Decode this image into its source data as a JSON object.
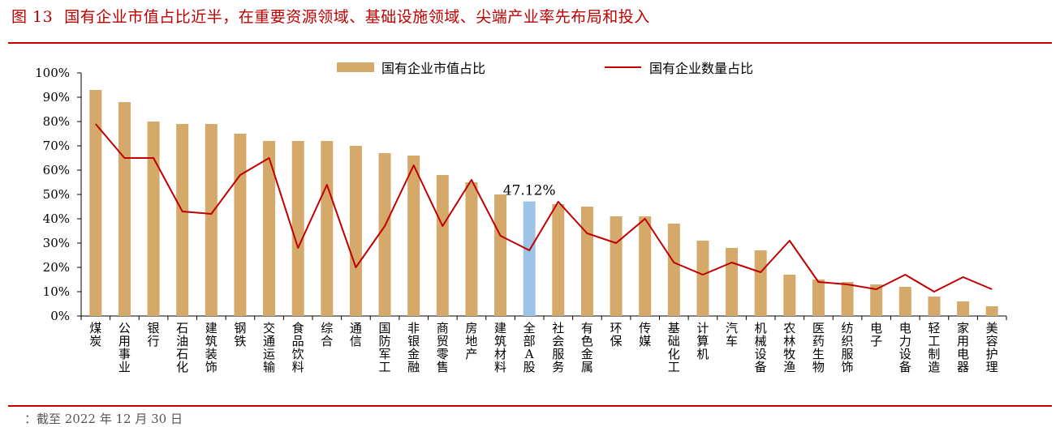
{
  "header": {
    "figure_number": "图 13",
    "title": "国有企业市值占比近半，在重要资源领域、基础设施领域、尖端产业率先布局和投入"
  },
  "footer": {
    "note": "：截至 2022 年 12 月 30 日"
  },
  "colors": {
    "accent": "#c00000",
    "bar": "#d4a96a",
    "highlight_bar": "#9dc3e6",
    "line": "#c00000"
  },
  "chart_data": {
    "type": "bar",
    "categories": [
      "煤炭",
      "公用事业",
      "银行",
      "石油石化",
      "建筑装饰",
      "钢铁",
      "交通运输",
      "食品饮料",
      "综合",
      "通信",
      "国防军工",
      "非银金融",
      "商贸零售",
      "房地产",
      "建筑材料",
      "全部A股",
      "社会服务",
      "有色金属",
      "环保",
      "传媒",
      "基础化工",
      "计算机",
      "汽车",
      "机械设备",
      "农林牧渔",
      "医药生物",
      "纺织服饰",
      "电子",
      "电力设备",
      "轻工制造",
      "家用电器",
      "美容护理"
    ],
    "series": [
      {
        "name": "国有企业市值占比",
        "kind": "bar",
        "values": [
          93,
          88,
          80,
          79,
          79,
          75,
          72,
          72,
          72,
          70,
          67,
          66,
          58,
          55,
          50,
          47.12,
          46,
          45,
          41,
          41,
          38,
          31,
          28,
          27,
          17,
          15,
          14,
          13,
          12,
          8,
          6,
          4
        ]
      },
      {
        "name": "国有企业数量占比",
        "kind": "line",
        "values": [
          79,
          65,
          65,
          43,
          42,
          58,
          65,
          28,
          54,
          20,
          37,
          62,
          37,
          56,
          33,
          27,
          47,
          34,
          30,
          40,
          22,
          17,
          22,
          18,
          31,
          14,
          13,
          11,
          17,
          10,
          16,
          11
        ]
      }
    ],
    "highlight_index": 15,
    "annotation": {
      "index": 15,
      "text": "47.12%"
    },
    "ylim": [
      0,
      100
    ],
    "yticks": [
      "0%",
      "10%",
      "20%",
      "30%",
      "40%",
      "50%",
      "60%",
      "70%",
      "80%",
      "90%",
      "100%"
    ],
    "xlabel": "",
    "ylabel": "",
    "legend_position": "top",
    "grid": false
  }
}
